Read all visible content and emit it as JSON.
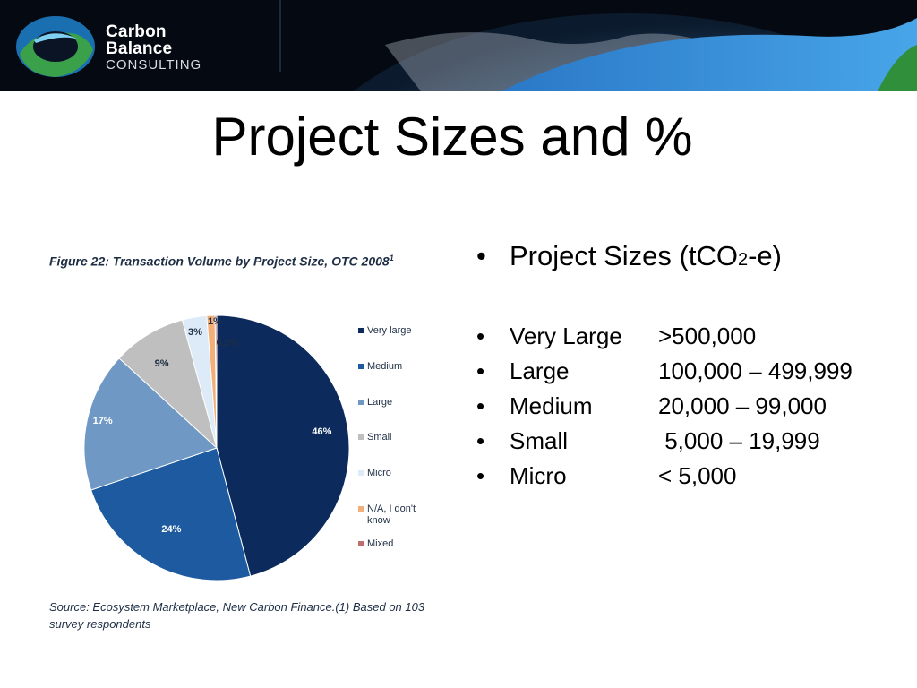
{
  "header": {
    "logo_line1": "Carbon",
    "logo_line2": "Balance",
    "logo_line3": "CONSULTING"
  },
  "title": "Project Sizes and %",
  "figure": {
    "title": "Figure 22: Transaction Volume by Project Size, OTC 2008",
    "title_sup": "1",
    "source": "Source: Ecosystem Marketplace, New Carbon Finance.(1) Based on 103 survey respondents"
  },
  "chart_data": {
    "type": "pie",
    "title": "Figure 22: Transaction Volume by Project Size, OTC 2008",
    "slices": [
      {
        "label": "Very large",
        "value": 46,
        "display": "46%",
        "color": "#0c2a5c"
      },
      {
        "label": "Medium",
        "value": 24,
        "display": "24%",
        "color": "#1d5aa0"
      },
      {
        "label": "Large",
        "value": 17,
        "display": "17%",
        "color": "#7098c4"
      },
      {
        "label": "Small",
        "value": 9,
        "display": "9%",
        "color": "#bfbfbf"
      },
      {
        "label": "Micro",
        "value": 3,
        "display": "3%",
        "color": "#ddeaf8"
      },
      {
        "label": "N/A, I don't know",
        "value": 1,
        "display": "1%",
        "color": "#f2b078"
      },
      {
        "label": "Mixed",
        "value": 0.2,
        "display": "0.2%",
        "color": "#c06d6d"
      }
    ],
    "legend_position": "right"
  },
  "bullets": {
    "heading_prefix": "Project Sizes (tCO",
    "heading_sub": "2",
    "heading_suffix": "-e)",
    "bullet_char": "•",
    "rows": [
      {
        "name": "Very Large",
        "range": ">500,000"
      },
      {
        "name": "Large",
        "range": "100,000 – 499,999"
      },
      {
        "name": "Medium",
        "range": "20,000 – 99,000"
      },
      {
        "name": "Small",
        "range": " 5,000 – 19,999"
      },
      {
        "name": "Micro",
        "range": "< 5,000"
      }
    ]
  }
}
